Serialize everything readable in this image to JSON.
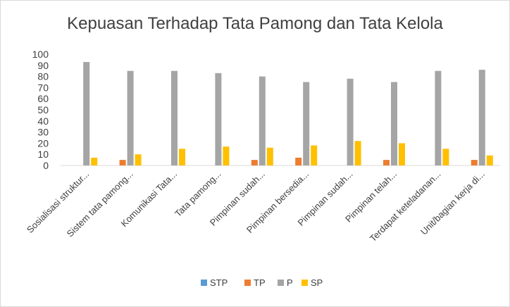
{
  "chart_data": {
    "type": "bar",
    "title": "Kepuasan Terhadap Tata Pamong dan Tata Kelola",
    "xlabel": "",
    "ylabel": "",
    "ylim": [
      0,
      100
    ],
    "yticks": [
      0,
      10,
      20,
      30,
      40,
      50,
      60,
      70,
      80,
      90,
      100
    ],
    "grid": false,
    "legend_position": "bottom",
    "categories": [
      "Sosialisasi struktur...",
      "Sistem tata pamong...",
      "Komunikasi Tata...",
      "Tata pamong...",
      "Pimpinan sudah...",
      "Pimpinan bersedia...",
      "Pimpinan sudah...",
      "Pimpinan telah...",
      "Terdapat keteladanan...",
      "Unit/bagian kerja di..."
    ],
    "series": [
      {
        "name": "STP",
        "color": "#5b9bd5",
        "values": [
          0,
          0,
          0,
          0,
          0,
          0,
          0,
          0,
          0,
          0
        ]
      },
      {
        "name": "TP",
        "color": "#ed7d31",
        "values": [
          0,
          5,
          0,
          0,
          5,
          7,
          0,
          5,
          0,
          5
        ]
      },
      {
        "name": "P",
        "color": "#a5a5a5",
        "values": [
          93,
          85,
          85,
          83,
          80,
          75,
          78,
          75,
          85,
          86
        ]
      },
      {
        "name": "SP",
        "color": "#ffc000",
        "values": [
          7,
          10,
          15,
          17,
          16,
          18,
          22,
          20,
          15,
          9
        ]
      }
    ]
  }
}
